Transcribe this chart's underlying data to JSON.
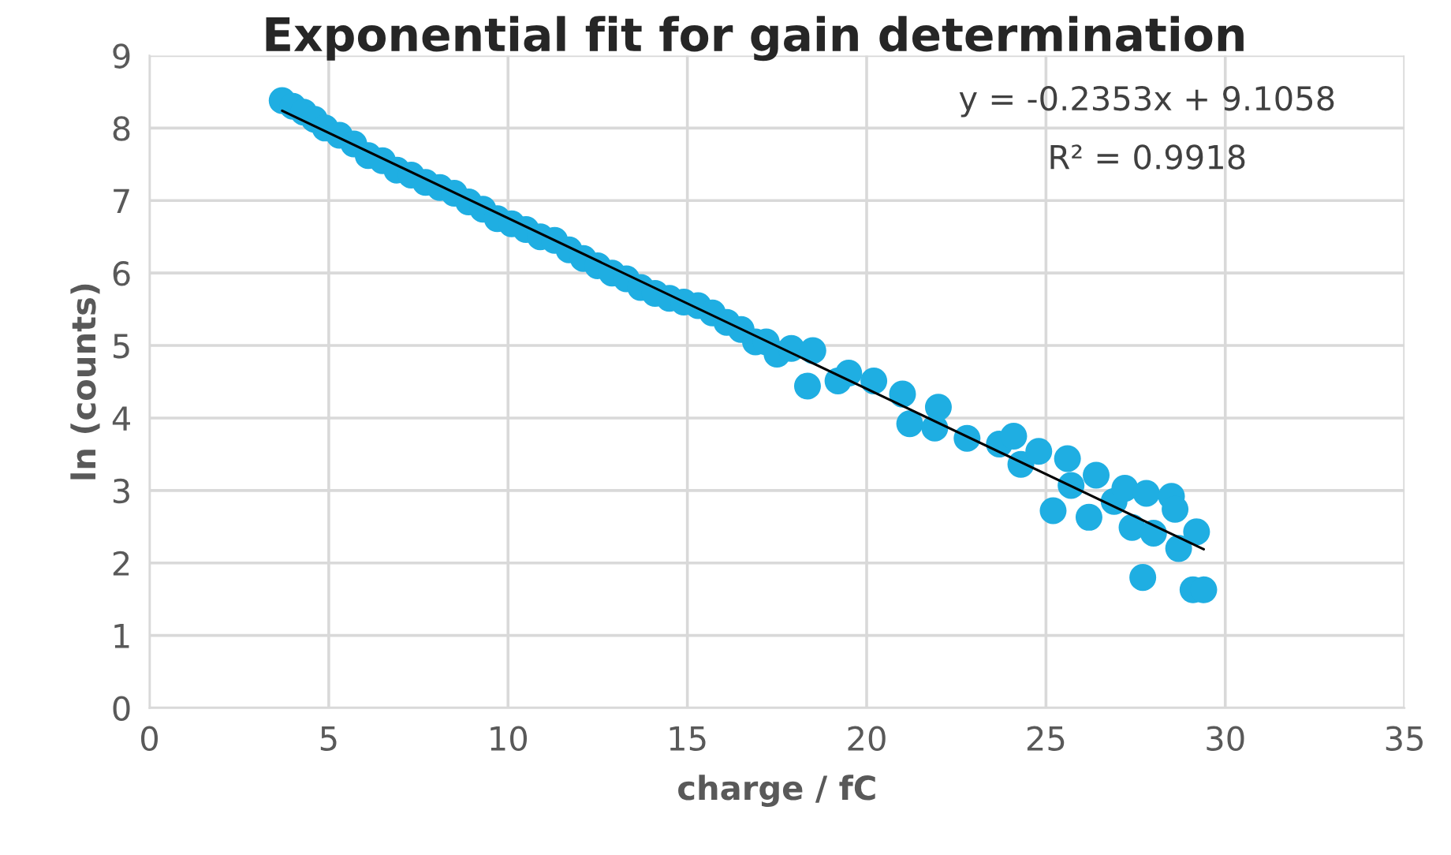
{
  "chart_data": {
    "type": "scatter",
    "title": "Exponential fit for gain determination",
    "xlabel": "charge / fC",
    "ylabel": "ln (counts)",
    "xlim": [
      0,
      35
    ],
    "xticks": [
      0,
      5,
      10,
      15,
      20,
      25,
      30,
      35
    ],
    "ylim": [
      0,
      9
    ],
    "yticks": [
      0,
      1,
      2,
      3,
      4,
      5,
      6,
      7,
      8,
      9
    ],
    "grid": true,
    "legend": false,
    "annotations": [
      "y = -0.2353x + 9.1058",
      "R² = 0.9918"
    ],
    "series": [
      {
        "marker": "circle",
        "color": "#1faee2",
        "x": [
          3.7,
          4.0,
          4.3,
          4.6,
          4.9,
          5.3,
          5.7,
          6.1,
          6.5,
          6.9,
          7.3,
          7.7,
          8.1,
          8.5,
          8.9,
          9.3,
          9.7,
          10.1,
          10.5,
          10.9,
          11.3,
          11.7,
          12.1,
          12.5,
          12.9,
          13.3,
          13.7,
          14.1,
          14.5,
          14.9,
          15.3,
          15.7,
          16.1,
          16.5,
          16.9,
          17.2,
          17.5,
          17.9,
          18.35,
          18.5,
          19.2,
          19.5,
          20.2,
          21.0,
          21.2,
          21.9,
          22.0,
          22.8,
          23.7,
          24.1,
          24.3,
          24.8,
          25.2,
          25.6,
          25.7,
          26.2,
          26.4,
          26.9,
          27.2,
          27.4,
          27.7,
          27.8,
          28.0,
          28.5,
          28.6,
          28.7,
          29.1,
          29.2,
          29.4
        ],
        "values": [
          8.38,
          8.3,
          8.22,
          8.12,
          8.0,
          7.9,
          7.78,
          7.62,
          7.55,
          7.42,
          7.35,
          7.25,
          7.18,
          7.1,
          6.98,
          6.88,
          6.75,
          6.68,
          6.6,
          6.5,
          6.45,
          6.32,
          6.2,
          6.1,
          6.0,
          5.92,
          5.8,
          5.72,
          5.65,
          5.6,
          5.55,
          5.45,
          5.32,
          5.22,
          5.05,
          5.05,
          4.88,
          4.96,
          4.44,
          4.93,
          4.51,
          4.62,
          4.51,
          4.33,
          3.92,
          3.86,
          4.15,
          3.72,
          3.64,
          3.75,
          3.36,
          3.54,
          2.72,
          3.44,
          3.07,
          2.63,
          3.21,
          2.85,
          3.03,
          2.49,
          1.8,
          2.96,
          2.41,
          2.92,
          2.74,
          2.2,
          1.63,
          2.43,
          1.63
        ]
      },
      {
        "type": "line",
        "color": "#000000",
        "x": [
          3.7,
          29.4
        ],
        "values": [
          8.24,
          2.19
        ]
      }
    ]
  }
}
